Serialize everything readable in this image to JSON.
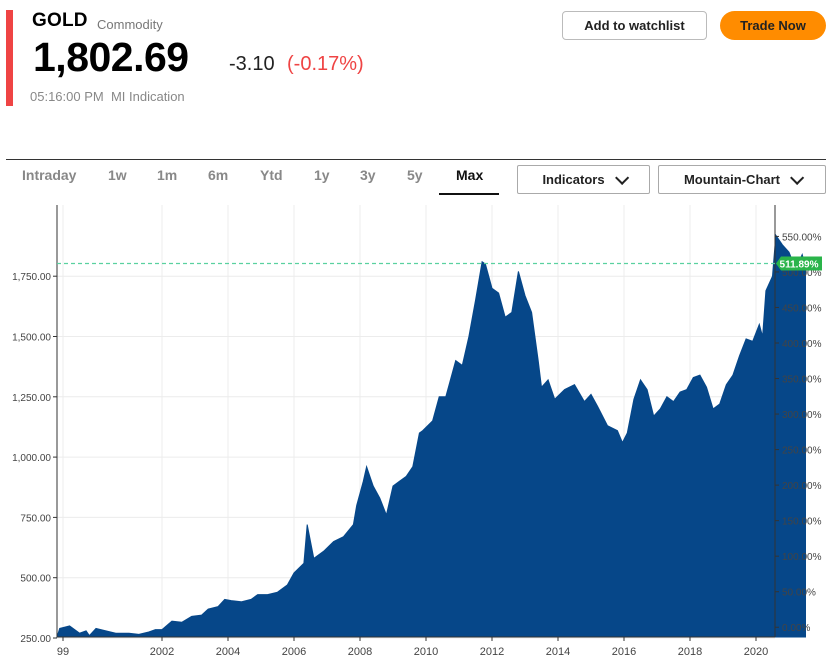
{
  "header": {
    "symbol": "GOLD",
    "asset_type": "Commodity",
    "price": "1,802.69",
    "change": "-3.10",
    "change_pct": "(-0.17%)",
    "timestamp": "05:16:00 PM",
    "quote_type": "MI Indication",
    "accent_color": "#ef4444"
  },
  "actions": {
    "watchlist_label": "Add to watchlist",
    "trade_label": "Trade Now",
    "trade_color": "#ff8c00"
  },
  "range_tabs": [
    "Intraday",
    "1w",
    "1m",
    "6m",
    "Ytd",
    "1y",
    "3y",
    "5y",
    "Max"
  ],
  "active_tab": "Max",
  "indicators_label": "Indicators",
  "chart_type_label": "Mountain-Chart",
  "chart_data": {
    "type": "area",
    "title": "",
    "xlabel": "",
    "ylabel": "",
    "fill_color": "#064789",
    "x_tick_labels": [
      "99",
      "2002",
      "2004",
      "2006",
      "2008",
      "2010",
      "2012",
      "2014",
      "2016",
      "2018",
      "2020"
    ],
    "x_tick_years": [
      1999,
      2002,
      2004,
      2006,
      2008,
      2010,
      2012,
      2014,
      2016,
      2018,
      2020
    ],
    "y_left_ticks": [
      "250.00",
      "500.00",
      "750.00",
      "1,000.00",
      "1,250.00",
      "1,500.00",
      "1,750.00"
    ],
    "y_left_tick_values": [
      250,
      500,
      750,
      1000,
      1250,
      1500,
      1750
    ],
    "y_right_ticks": [
      "0.00%",
      "50.00%",
      "100.00%",
      "150.00%",
      "200.00%",
      "250.00%",
      "300.00%",
      "350.00%",
      "400.00%",
      "450.00%",
      "500.00%",
      "550.00%"
    ],
    "y_right_tick_values": [
      0,
      50,
      100,
      150,
      200,
      250,
      300,
      350,
      400,
      450,
      500,
      550
    ],
    "ylim": [
      210,
      1990
    ],
    "xlim": [
      1998.9,
      2021.6
    ],
    "current_level": 1802.69,
    "current_label": "511.89%",
    "current_label_color": "#2ab44a",
    "grid": true,
    "series": [
      {
        "x": [
          1998.9,
          1999.2,
          1999.5,
          1999.7,
          1999.8,
          2000.0,
          2000.3,
          2000.6,
          2001.0,
          2001.3,
          2001.6,
          2001.8,
          2002.0,
          2002.3,
          2002.6,
          2002.9,
          2003.2,
          2003.4,
          2003.7,
          2003.9,
          2004.1,
          2004.4,
          2004.7,
          2004.9,
          2005.2,
          2005.5,
          2005.8,
          2006.0,
          2006.3,
          2006.4,
          2006.6,
          2006.9,
          2007.2,
          2007.5,
          2007.8,
          2007.9,
          2008.1,
          2008.2,
          2008.4,
          2008.6,
          2008.8,
          2009.0,
          2009.2,
          2009.4,
          2009.6,
          2009.8,
          2009.9,
          2010.2,
          2010.4,
          2010.6,
          2010.9,
          2011.1,
          2011.3,
          2011.5,
          2011.7,
          2011.8,
          2012.0,
          2012.2,
          2012.4,
          2012.6,
          2012.8,
          2013.0,
          2013.2,
          2013.4,
          2013.5,
          2013.7,
          2013.9,
          2014.2,
          2014.5,
          2014.8,
          2015.0,
          2015.2,
          2015.5,
          2015.8,
          2015.95,
          2016.1,
          2016.3,
          2016.5,
          2016.7,
          2016.9,
          2017.1,
          2017.3,
          2017.5,
          2017.7,
          2017.9,
          2018.1,
          2018.3,
          2018.5,
          2018.7,
          2018.9,
          2019.1,
          2019.3,
          2019.5,
          2019.7,
          2019.9,
          2020.1,
          2020.2,
          2020.3,
          2020.5,
          2020.6,
          2020.8,
          2021.0,
          2021.2,
          2021.4,
          2021.5
        ],
        "y": [
          290,
          300,
          270,
          280,
          260,
          290,
          280,
          270,
          270,
          265,
          275,
          285,
          285,
          320,
          315,
          340,
          345,
          370,
          380,
          410,
          405,
          400,
          410,
          430,
          430,
          440,
          470,
          520,
          560,
          720,
          580,
          610,
          650,
          670,
          720,
          800,
          900,
          960,
          880,
          830,
          760,
          880,
          900,
          920,
          960,
          1100,
          1110,
          1150,
          1250,
          1250,
          1400,
          1380,
          1500,
          1650,
          1810,
          1800,
          1700,
          1680,
          1580,
          1600,
          1770,
          1670,
          1600,
          1400,
          1290,
          1320,
          1240,
          1280,
          1300,
          1230,
          1260,
          1210,
          1130,
          1110,
          1060,
          1100,
          1240,
          1320,
          1280,
          1170,
          1200,
          1250,
          1230,
          1270,
          1280,
          1330,
          1340,
          1290,
          1200,
          1220,
          1300,
          1340,
          1420,
          1490,
          1480,
          1550,
          1500,
          1690,
          1750,
          1920,
          1880,
          1850,
          1780,
          1840,
          1790
        ]
      }
    ]
  }
}
